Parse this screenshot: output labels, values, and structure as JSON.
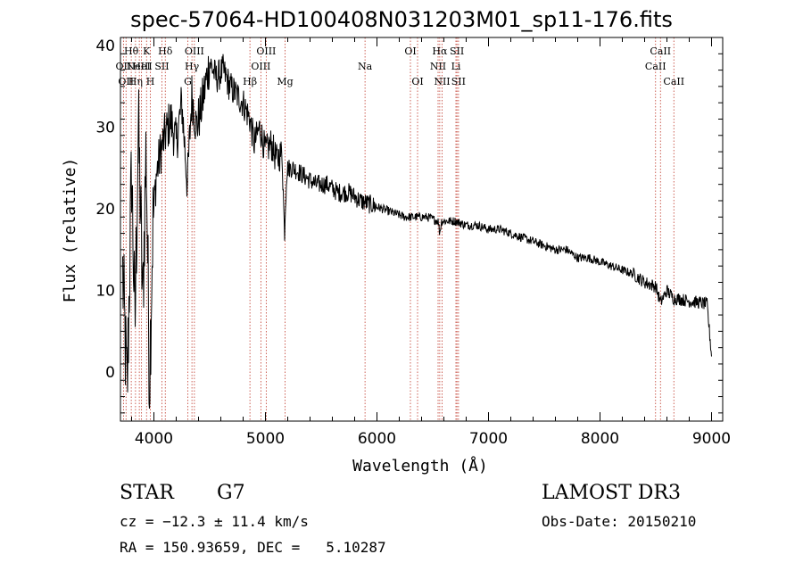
{
  "chart_data": {
    "type": "line",
    "title": "spec-57064-HD100408N031203M01_sp11-176.fits",
    "xlabel": "Wavelength (Å)",
    "ylabel": "Flux (relative)",
    "xlim": [
      3700,
      9100
    ],
    "ylim": [
      -6,
      41
    ],
    "xticks": [
      4000,
      5000,
      6000,
      7000,
      8000,
      9000
    ],
    "yticks": [
      0,
      10,
      20,
      30,
      40
    ],
    "series": [
      {
        "name": "spectrum",
        "x": [
          3720,
          3760,
          3800,
          3830,
          3860,
          3880,
          3900,
          3930,
          3960,
          3990,
          4020,
          4060,
          4100,
          4150,
          4200,
          4250,
          4300,
          4340,
          4380,
          4420,
          4460,
          4500,
          4560,
          4620,
          4680,
          4740,
          4800,
          4860,
          4900,
          4950,
          5000,
          5050,
          5100,
          5150,
          5170,
          5190,
          5250,
          5350,
          5450,
          5550,
          5650,
          5750,
          5850,
          5950,
          6050,
          6150,
          6250,
          6350,
          6450,
          6550,
          6562,
          6580,
          6700,
          6800,
          6900,
          7000,
          7100,
          7200,
          7300,
          7400,
          7500,
          7600,
          7700,
          7800,
          7900,
          8000,
          8100,
          8200,
          8300,
          8400,
          8500,
          8542,
          8600,
          8662,
          8700,
          8800,
          8900,
          8960,
          9000
        ],
        "values": [
          12,
          -3,
          25,
          5,
          30,
          20,
          8,
          28,
          -1,
          18,
          24,
          27,
          29,
          31,
          28,
          33,
          23,
          34,
          30,
          32,
          35,
          38,
          36,
          37,
          35,
          34,
          33,
          31,
          28,
          30,
          27,
          28,
          26,
          27,
          17,
          25,
          25,
          24,
          23,
          23,
          22,
          22,
          21,
          20.5,
          20,
          19.5,
          19,
          19,
          19,
          18.5,
          17,
          18.5,
          18.5,
          18,
          18,
          17.5,
          17.5,
          17,
          16.5,
          16,
          15.5,
          15,
          15,
          14,
          14,
          13.5,
          13,
          12.5,
          12,
          11,
          10.5,
          8.5,
          10,
          9,
          9,
          8.7,
          8.5,
          8.3,
          2
        ]
      }
    ],
    "lines": [
      {
        "wl": 3727,
        "label": "OII",
        "row": 2
      },
      {
        "wl": 3750,
        "label": "OII",
        "row": 3
      },
      {
        "wl": 3797,
        "label": "Hθ",
        "row": 1
      },
      {
        "wl": 3835,
        "label": "Hη",
        "row": 3
      },
      {
        "wl": 3869,
        "label": "NeIII",
        "row": 2
      },
      {
        "wl": 3889,
        "label": "HeI",
        "row": 2
      },
      {
        "wl": 3934,
        "label": "K",
        "row": 1
      },
      {
        "wl": 3968,
        "label": "H",
        "row": 3
      },
      {
        "wl": 4072,
        "label": "SII",
        "row": 2
      },
      {
        "wl": 4102,
        "label": "Hδ",
        "row": 1
      },
      {
        "wl": 4304,
        "label": "G",
        "row": 3
      },
      {
        "wl": 4341,
        "label": "Hγ",
        "row": 2
      },
      {
        "wl": 4363,
        "label": "OIII",
        "row": 1
      },
      {
        "wl": 4861,
        "label": "Hβ",
        "row": 3
      },
      {
        "wl": 4959,
        "label": "OIII",
        "row": 2
      },
      {
        "wl": 5007,
        "label": "OIII",
        "row": 1
      },
      {
        "wl": 5176,
        "label": "Mg",
        "row": 3
      },
      {
        "wl": 5893,
        "label": "Na",
        "row": 2
      },
      {
        "wl": 6300,
        "label": "OI",
        "row": 1
      },
      {
        "wl": 6364,
        "label": "OI",
        "row": 3
      },
      {
        "wl": 6548,
        "label": "NII",
        "row": 2
      },
      {
        "wl": 6563,
        "label": "Hα",
        "row": 1
      },
      {
        "wl": 6584,
        "label": "NII",
        "row": 3
      },
      {
        "wl": 6708,
        "label": "Li",
        "row": 2
      },
      {
        "wl": 6717,
        "label": "SII",
        "row": 1
      },
      {
        "wl": 6731,
        "label": "SII",
        "row": 3
      },
      {
        "wl": 8498,
        "label": "CaII",
        "row": 2
      },
      {
        "wl": 8542,
        "label": "CaII",
        "row": 1
      },
      {
        "wl": 8662,
        "label": "CaII",
        "row": 3
      }
    ]
  },
  "info": {
    "class": "STAR",
    "subclass": "G7",
    "cz": "cz = −12.3 ± 11.4 km/s",
    "radec": "RA = 150.93659, DEC =   5.10287",
    "survey": "LAMOST DR3",
    "obsdate": "Obs-Date: 20150210"
  }
}
